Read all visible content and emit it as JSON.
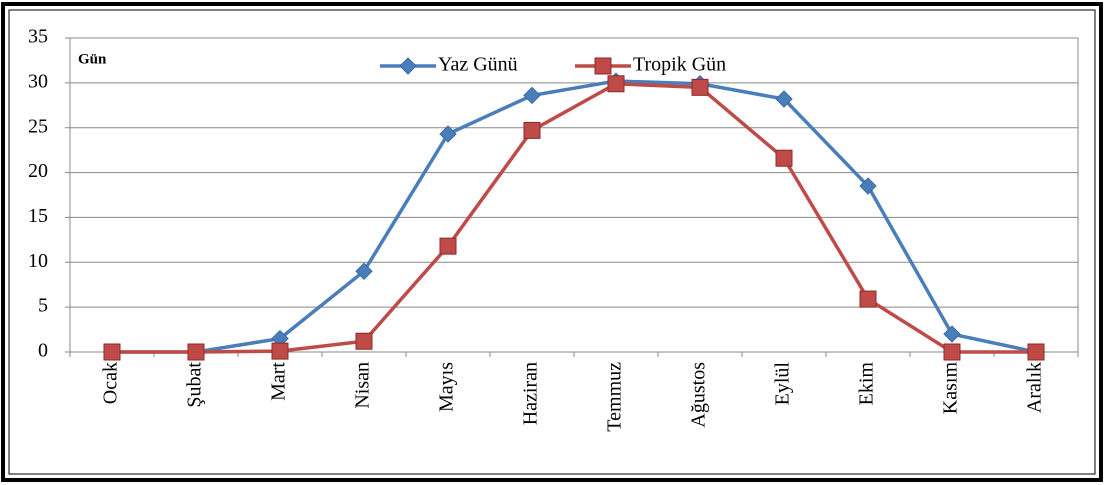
{
  "chart_data": {
    "type": "line",
    "ylabel": "Gün",
    "categories": [
      "Ocak",
      "Şubat",
      "Mart",
      "Nisan",
      "Mayıs",
      "Haziran",
      "Temmuz",
      "Ağustos",
      "Eylül",
      "Ekim",
      "Kasım",
      "Aralık"
    ],
    "series": [
      {
        "name": "Yaz Günü",
        "color": "#4a7ebb",
        "marker": "diamond",
        "values": [
          0,
          0,
          1.5,
          9,
          24.3,
          28.6,
          30.2,
          29.9,
          28.2,
          18.5,
          2,
          0
        ]
      },
      {
        "name": "Tropik Gün",
        "color": "#be4b48",
        "marker": "square",
        "values": [
          0,
          0,
          0.1,
          1.2,
          11.8,
          24.7,
          29.9,
          29.5,
          21.6,
          5.9,
          0,
          0
        ]
      }
    ],
    "ylim": [
      0,
      35
    ],
    "yticks": [
      0,
      5,
      10,
      15,
      20,
      25,
      30,
      35
    ],
    "grid": true,
    "legend": "top"
  }
}
